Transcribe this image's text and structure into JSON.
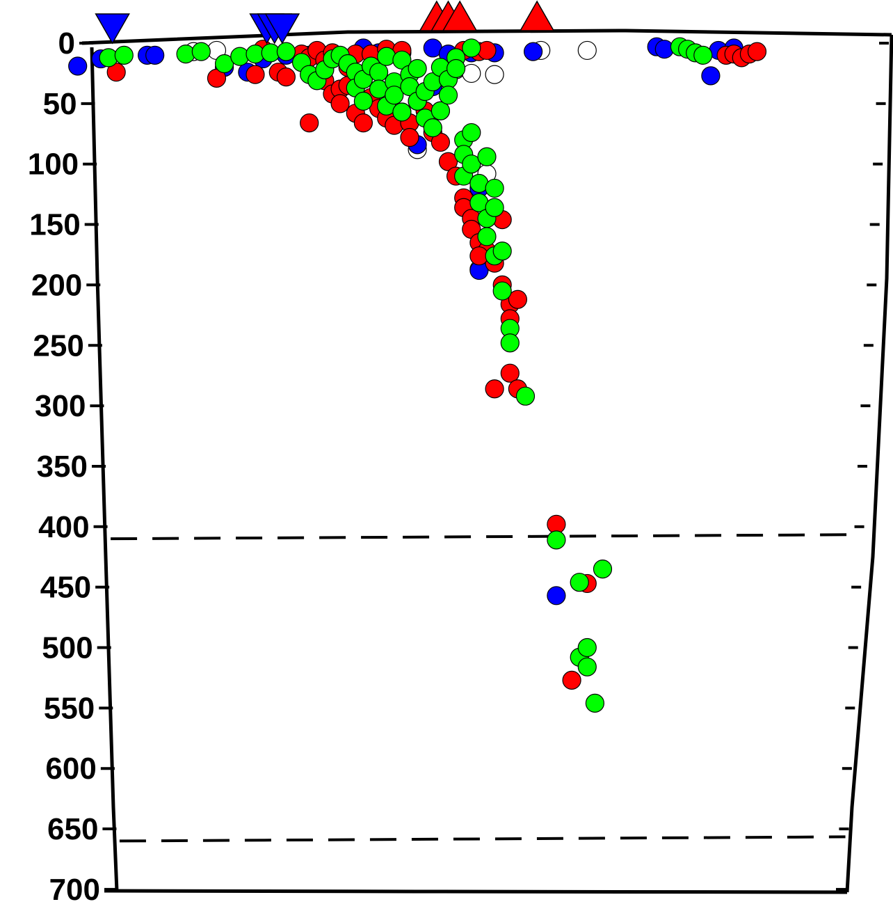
{
  "chart_data": {
    "type": "scatter",
    "title": "",
    "xlabel": "",
    "ylabel": "",
    "ylim": [
      0,
      700
    ],
    "y_inverted": true,
    "yticks": [
      0,
      50,
      100,
      150,
      200,
      250,
      300,
      350,
      400,
      450,
      500,
      550,
      600,
      650,
      700
    ],
    "tick_labels": [
      "0",
      "50",
      "100",
      "150",
      "200",
      "250",
      "300",
      "350",
      "400",
      "450",
      "500",
      "550",
      "600",
      "650",
      "700"
    ],
    "x_range": [
      0,
      100
    ],
    "grid": false,
    "legend": "none",
    "reference_lines": [
      {
        "depth": 410,
        "style": "dashed"
      },
      {
        "depth": 660,
        "style": "dashed"
      }
    ],
    "surface_markers": [
      {
        "shape": "inverted-triangle",
        "color": "#0000ff",
        "x": 1.5
      },
      {
        "shape": "inverted-triangle",
        "color": "#0000ff",
        "x": 21.5
      },
      {
        "shape": "inverted-triangle",
        "color": "#0000ff",
        "x": 22.5
      },
      {
        "shape": "inverted-triangle",
        "color": "#0000ff",
        "x": 23.5
      },
      {
        "shape": "triangle",
        "color": "#ff0000",
        "x": 43.5
      },
      {
        "shape": "triangle",
        "color": "#ff0000",
        "x": 45
      },
      {
        "shape": "triangle",
        "color": "#ff0000",
        "x": 46.5
      },
      {
        "shape": "triangle",
        "color": "#ff0000",
        "x": 56.5
      }
    ],
    "series": [
      {
        "color": "#ffffff",
        "stroke": "#000000",
        "points": [
          [
            12,
            7
          ],
          [
            15,
            6
          ],
          [
            46,
            22
          ],
          [
            48,
            25
          ],
          [
            51,
            26
          ],
          [
            57,
            6
          ],
          [
            63,
            6
          ],
          [
            41,
            88
          ],
          [
            50,
            108
          ],
          [
            49,
            187
          ]
        ]
      },
      {
        "color": "#0000ff",
        "points": [
          [
            -3,
            19
          ],
          [
            0,
            13
          ],
          [
            6,
            10
          ],
          [
            7,
            10
          ],
          [
            16,
            20
          ],
          [
            19,
            24
          ],
          [
            21,
            13
          ],
          [
            24,
            10
          ],
          [
            27,
            10
          ],
          [
            34,
            4
          ],
          [
            36,
            8
          ],
          [
            39,
            8
          ],
          [
            43,
            4
          ],
          [
            45,
            9
          ],
          [
            48,
            8
          ],
          [
            51,
            8
          ],
          [
            43,
            36
          ],
          [
            44,
            56
          ],
          [
            41,
            84
          ],
          [
            49,
            120
          ],
          [
            49,
            188
          ],
          [
            56,
            7
          ],
          [
            72,
            3
          ],
          [
            73,
            5
          ],
          [
            79,
            27
          ],
          [
            80,
            6
          ],
          [
            82,
            4
          ],
          [
            59,
            457
          ]
        ]
      },
      {
        "color": "#ff0000",
        "points": [
          [
            2,
            24
          ],
          [
            15,
            29
          ],
          [
            20,
            26
          ],
          [
            21,
            5
          ],
          [
            23,
            24
          ],
          [
            24,
            28
          ],
          [
            26,
            9
          ],
          [
            27,
            12
          ],
          [
            28,
            6
          ],
          [
            29,
            14
          ],
          [
            30,
            8
          ],
          [
            31,
            11
          ],
          [
            32,
            20
          ],
          [
            33,
            9
          ],
          [
            29,
            31
          ],
          [
            30,
            42
          ],
          [
            31,
            38
          ],
          [
            31,
            50
          ],
          [
            32,
            35
          ],
          [
            33,
            58
          ],
          [
            34,
            66
          ],
          [
            35,
            45
          ],
          [
            36,
            54
          ],
          [
            37,
            62
          ],
          [
            38,
            68
          ],
          [
            39,
            57
          ],
          [
            40,
            66
          ],
          [
            40,
            78
          ],
          [
            41,
            48
          ],
          [
            42,
            56
          ],
          [
            43,
            74
          ],
          [
            44,
            82
          ],
          [
            45,
            98
          ],
          [
            46,
            110
          ],
          [
            47,
            128
          ],
          [
            47,
            136
          ],
          [
            48,
            145
          ],
          [
            48,
            154
          ],
          [
            49,
            165
          ],
          [
            50,
            172
          ],
          [
            51,
            182
          ],
          [
            52,
            146
          ],
          [
            52,
            200
          ],
          [
            53,
            216
          ],
          [
            53,
            228
          ],
          [
            54,
            212
          ],
          [
            49,
            176
          ],
          [
            53,
            273
          ],
          [
            51,
            286
          ],
          [
            54,
            286
          ],
          [
            27,
            66
          ],
          [
            35,
            9
          ],
          [
            37,
            5
          ],
          [
            39,
            6
          ],
          [
            47,
            6
          ],
          [
            49,
            7
          ],
          [
            50,
            6
          ],
          [
            81,
            10
          ],
          [
            82,
            9
          ],
          [
            83,
            12
          ],
          [
            84,
            9
          ],
          [
            85,
            7
          ],
          [
            59,
            398
          ],
          [
            63,
            447
          ],
          [
            61,
            527
          ]
        ]
      },
      {
        "color": "#00ff00",
        "points": [
          [
            1,
            12
          ],
          [
            3,
            10
          ],
          [
            11,
            9
          ],
          [
            13,
            7
          ],
          [
            16,
            17
          ],
          [
            18,
            11
          ],
          [
            20,
            9
          ],
          [
            22,
            8
          ],
          [
            24,
            7
          ],
          [
            26,
            16
          ],
          [
            27,
            26
          ],
          [
            28,
            31
          ],
          [
            29,
            22
          ],
          [
            30,
            13
          ],
          [
            31,
            10
          ],
          [
            32,
            17
          ],
          [
            33,
            24
          ],
          [
            33,
            37
          ],
          [
            34,
            30
          ],
          [
            34,
            48
          ],
          [
            35,
            19
          ],
          [
            36,
            24
          ],
          [
            36,
            38
          ],
          [
            37,
            11
          ],
          [
            37,
            52
          ],
          [
            38,
            32
          ],
          [
            38,
            43
          ],
          [
            39,
            14
          ],
          [
            39,
            57
          ],
          [
            40,
            26
          ],
          [
            40,
            36
          ],
          [
            41,
            21
          ],
          [
            41,
            48
          ],
          [
            42,
            40
          ],
          [
            42,
            62
          ],
          [
            43,
            32
          ],
          [
            43,
            70
          ],
          [
            44,
            20
          ],
          [
            44,
            56
          ],
          [
            45,
            30
          ],
          [
            45,
            43
          ],
          [
            46,
            12
          ],
          [
            46,
            21
          ],
          [
            47,
            80
          ],
          [
            47,
            110
          ],
          [
            47,
            92
          ],
          [
            48,
            74
          ],
          [
            48,
            100
          ],
          [
            49,
            116
          ],
          [
            49,
            132
          ],
          [
            50,
            94
          ],
          [
            50,
            145
          ],
          [
            50,
            160
          ],
          [
            51,
            120
          ],
          [
            51,
            136
          ],
          [
            51,
            176
          ],
          [
            52,
            172
          ],
          [
            52,
            205
          ],
          [
            53,
            236
          ],
          [
            53,
            248
          ],
          [
            55,
            292
          ],
          [
            48,
            4
          ],
          [
            75,
            3
          ],
          [
            76,
            5
          ],
          [
            77,
            8
          ],
          [
            78,
            10
          ],
          [
            59,
            411
          ],
          [
            62,
            446
          ],
          [
            65,
            435
          ],
          [
            62,
            508
          ],
          [
            63,
            516
          ],
          [
            63,
            500
          ],
          [
            64,
            546
          ]
        ]
      }
    ]
  }
}
